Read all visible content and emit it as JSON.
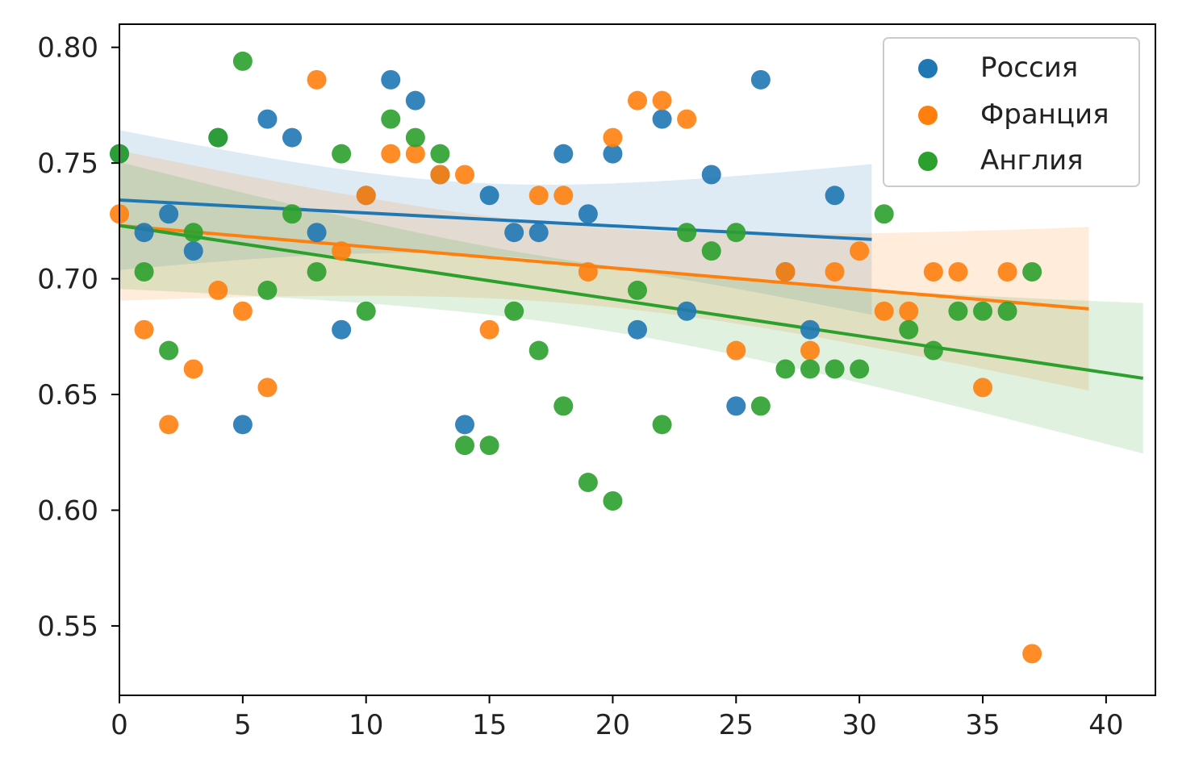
{
  "chart_data": {
    "type": "scatter",
    "title": "",
    "xlabel": "",
    "ylabel": "",
    "xlim": [
      0,
      42
    ],
    "ylim": [
      0.52,
      0.81
    ],
    "x_ticks": [
      "0",
      "5",
      "10",
      "15",
      "20",
      "25",
      "30",
      "35",
      "40"
    ],
    "y_ticks": [
      "0.55",
      "0.60",
      "0.65",
      "0.70",
      "0.75",
      "0.80"
    ],
    "grid": false,
    "legend_position": "top-right",
    "series": [
      {
        "name": "Россия",
        "color": "#1f77b4",
        "points": [
          [
            0,
            0.754
          ],
          [
            1,
            0.72
          ],
          [
            2,
            0.728
          ],
          [
            3,
            0.712
          ],
          [
            4,
            0.761
          ],
          [
            5,
            0.637
          ],
          [
            6,
            0.769
          ],
          [
            7,
            0.761
          ],
          [
            8,
            0.72
          ],
          [
            9,
            0.678
          ],
          [
            10,
            0.736
          ],
          [
            11,
            0.786
          ],
          [
            12,
            0.777
          ],
          [
            13,
            0.745
          ],
          [
            14,
            0.637
          ],
          [
            15,
            0.736
          ],
          [
            16,
            0.72
          ],
          [
            17,
            0.72
          ],
          [
            18,
            0.754
          ],
          [
            19,
            0.728
          ],
          [
            20,
            0.754
          ],
          [
            21,
            0.678
          ],
          [
            22,
            0.769
          ],
          [
            23,
            0.686
          ],
          [
            24,
            0.745
          ],
          [
            25,
            0.645
          ],
          [
            26,
            0.786
          ],
          [
            27,
            0.703
          ],
          [
            28,
            0.678
          ],
          [
            29,
            0.736
          ]
        ],
        "fit": {
          "x": [
            0,
            30.5
          ],
          "y": [
            0.734,
            0.717
          ]
        }
      },
      {
        "name": "Франция",
        "color": "#ff7f0e",
        "points": [
          [
            0,
            0.728
          ],
          [
            1,
            0.678
          ],
          [
            2,
            0.637
          ],
          [
            3,
            0.661
          ],
          [
            4,
            0.695
          ],
          [
            5,
            0.686
          ],
          [
            6,
            0.653
          ],
          [
            8,
            0.786
          ],
          [
            9,
            0.712
          ],
          [
            10,
            0.736
          ],
          [
            11,
            0.754
          ],
          [
            12,
            0.754
          ],
          [
            13,
            0.745
          ],
          [
            14,
            0.745
          ],
          [
            15,
            0.678
          ],
          [
            17,
            0.736
          ],
          [
            18,
            0.736
          ],
          [
            19,
            0.703
          ],
          [
            20,
            0.761
          ],
          [
            21,
            0.777
          ],
          [
            22,
            0.777
          ],
          [
            23,
            0.769
          ],
          [
            25,
            0.669
          ],
          [
            27,
            0.703
          ],
          [
            28,
            0.669
          ],
          [
            29,
            0.703
          ],
          [
            30,
            0.712
          ],
          [
            31,
            0.686
          ],
          [
            32,
            0.686
          ],
          [
            33,
            0.703
          ],
          [
            34,
            0.703
          ],
          [
            35,
            0.653
          ],
          [
            36,
            0.703
          ],
          [
            37,
            0.538
          ]
        ],
        "fit": {
          "x": [
            0,
            39.3
          ],
          "y": [
            0.723,
            0.687
          ]
        }
      },
      {
        "name": "Англия",
        "color": "#2ca02c",
        "points": [
          [
            0,
            0.754
          ],
          [
            1,
            0.703
          ],
          [
            2,
            0.669
          ],
          [
            3,
            0.72
          ],
          [
            4,
            0.761
          ],
          [
            5,
            0.794
          ],
          [
            6,
            0.695
          ],
          [
            7,
            0.728
          ],
          [
            8,
            0.703
          ],
          [
            9,
            0.754
          ],
          [
            10,
            0.686
          ],
          [
            11,
            0.769
          ],
          [
            12,
            0.761
          ],
          [
            13,
            0.754
          ],
          [
            14,
            0.628
          ],
          [
            15,
            0.628
          ],
          [
            16,
            0.686
          ],
          [
            17,
            0.669
          ],
          [
            18,
            0.645
          ],
          [
            19,
            0.612
          ],
          [
            20,
            0.604
          ],
          [
            21,
            0.695
          ],
          [
            22,
            0.637
          ],
          [
            23,
            0.72
          ],
          [
            24,
            0.712
          ],
          [
            25,
            0.72
          ],
          [
            26,
            0.645
          ],
          [
            27,
            0.661
          ],
          [
            28,
            0.661
          ],
          [
            29,
            0.661
          ],
          [
            30,
            0.661
          ],
          [
            31,
            0.728
          ],
          [
            32,
            0.678
          ],
          [
            33,
            0.669
          ],
          [
            34,
            0.686
          ],
          [
            35,
            0.686
          ],
          [
            36,
            0.686
          ],
          [
            37,
            0.703
          ]
        ],
        "fit": {
          "x": [
            0,
            41.5
          ],
          "y": [
            0.723,
            0.657
          ]
        }
      }
    ]
  }
}
